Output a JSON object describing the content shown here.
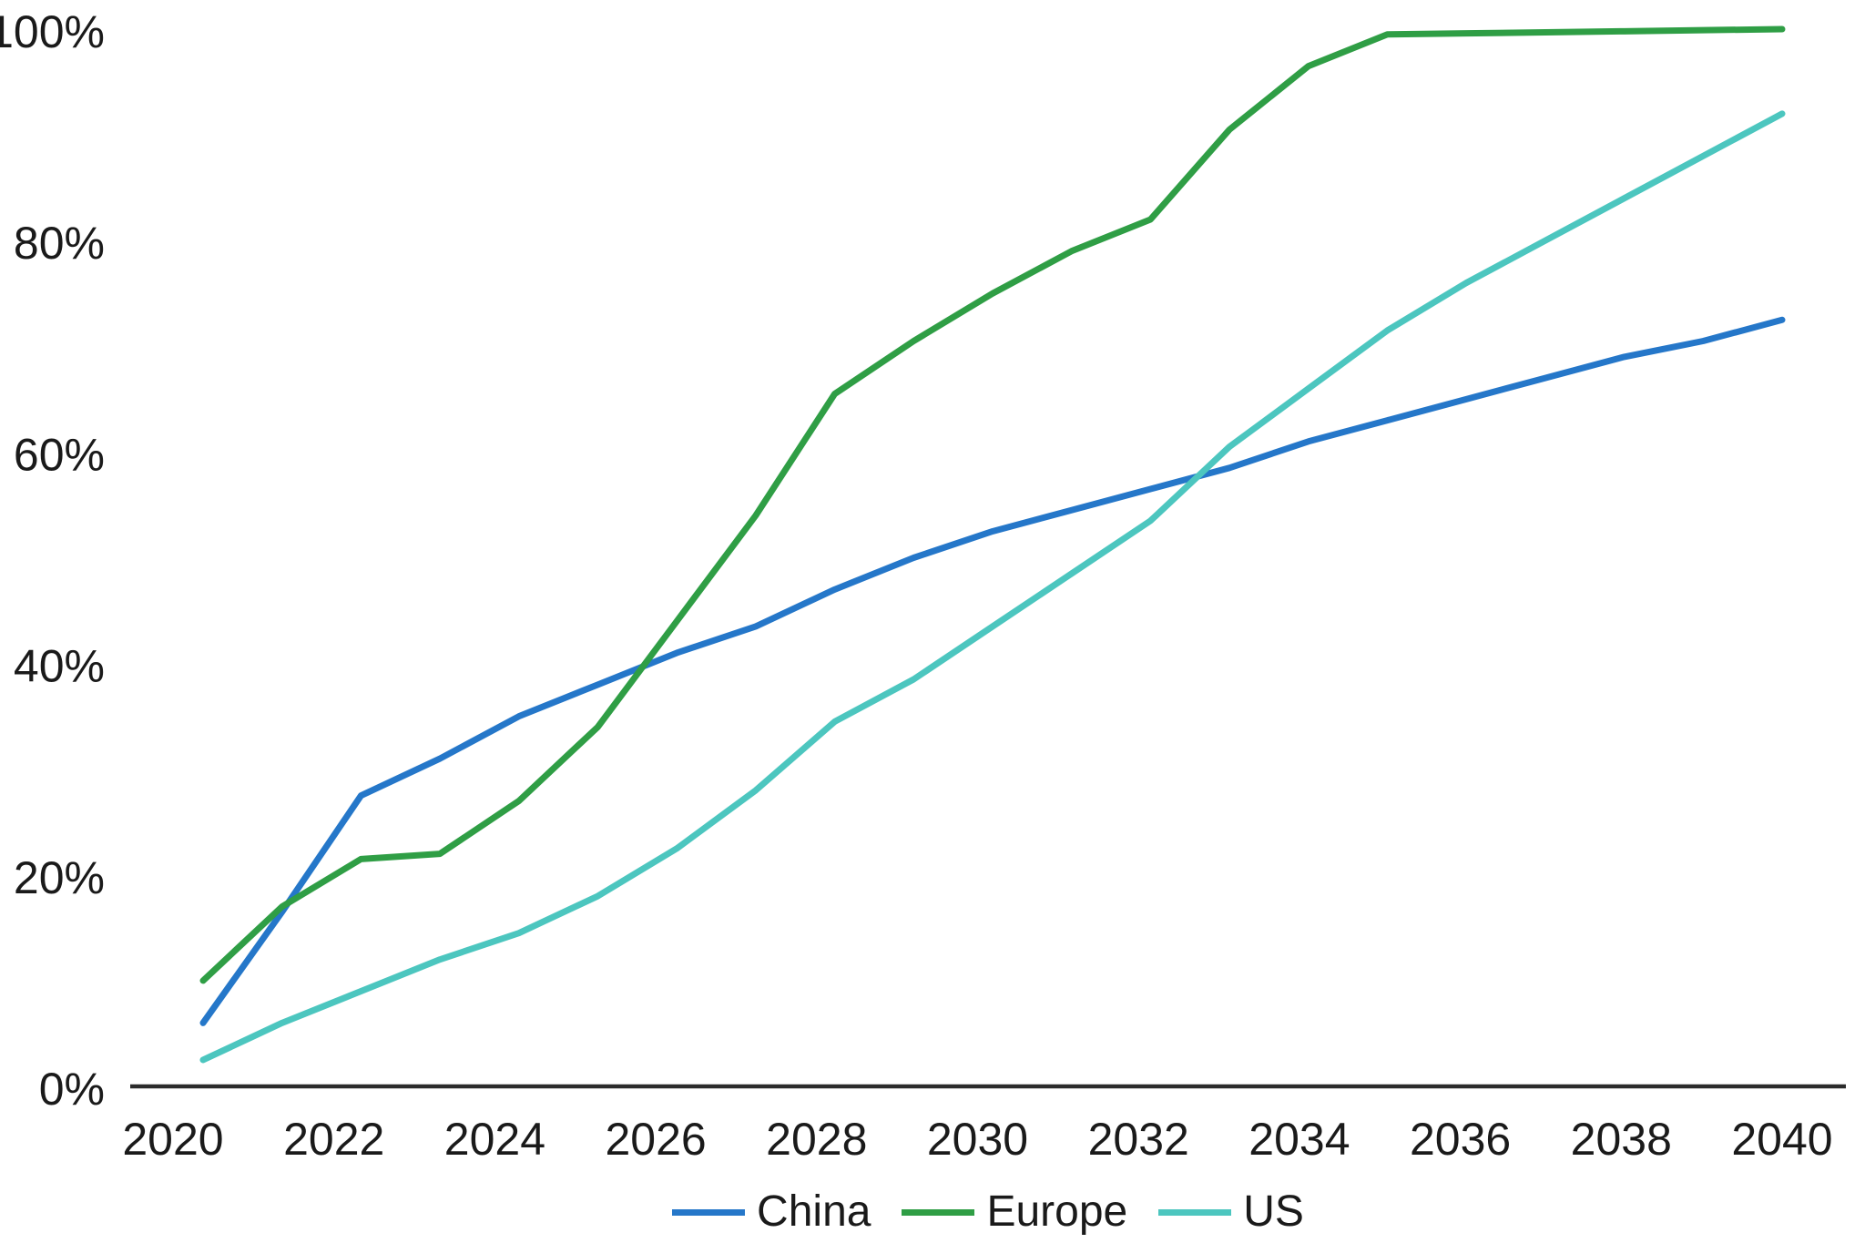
{
  "chart_data": {
    "type": "line",
    "title": "",
    "xlabel": "",
    "ylabel": "",
    "categories": [
      2020,
      2021,
      2022,
      2023,
      2024,
      2025,
      2026,
      2027,
      2028,
      2029,
      2030,
      2031,
      2032,
      2033,
      2034,
      2035,
      2036,
      2037,
      2038,
      2039,
      2040
    ],
    "x_axis_tick_labels": [
      "2020",
      "2022",
      "2024",
      "2026",
      "2028",
      "2030",
      "2032",
      "2034",
      "2036",
      "2038",
      "2040"
    ],
    "y_axis_tick_labels": [
      "0%",
      "20%",
      "40%",
      "60%",
      "80%",
      "100%"
    ],
    "y_axis_tick_values": [
      0,
      20,
      40,
      60,
      80,
      100
    ],
    "ylim": [
      0,
      100
    ],
    "grid": false,
    "legend_position": "bottom-center",
    "axis_color": "#2b2b2b",
    "text_color": "#1a1a1a",
    "series": [
      {
        "name": "China",
        "color": "#2577c9",
        "values": [
          6,
          16.5,
          27.5,
          31,
          35,
          38,
          41,
          43.5,
          47,
          50,
          52.5,
          54.5,
          56.5,
          58.5,
          61,
          63,
          65,
          67,
          69,
          70.5,
          72.5
        ]
      },
      {
        "name": "Europe",
        "color": "#2f9e45",
        "values": [
          10,
          17,
          21.5,
          22,
          27,
          34,
          44,
          54,
          65.5,
          70.5,
          75,
          79,
          82,
          90.5,
          96.5,
          99.5,
          99.6,
          99.7,
          99.8,
          99.9,
          100
        ]
      },
      {
        "name": "US",
        "color": "#4cc6bf",
        "values": [
          2.5,
          6,
          9,
          12,
          14.5,
          18,
          22.5,
          28,
          34.5,
          38.5,
          43.5,
          48.5,
          53.5,
          60.5,
          66,
          71.5,
          76,
          80,
          84,
          88,
          92
        ]
      }
    ]
  },
  "legend": {
    "items": [
      {
        "label": "China"
      },
      {
        "label": "Europe"
      },
      {
        "label": "US"
      }
    ]
  }
}
